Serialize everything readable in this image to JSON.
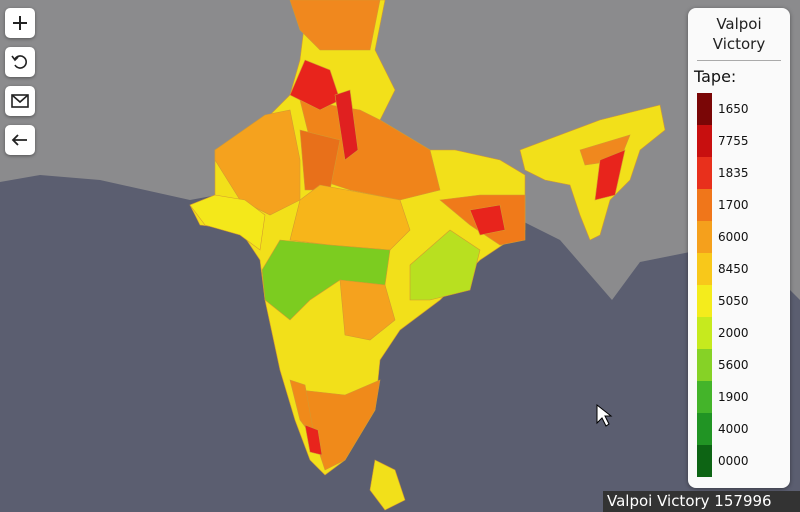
{
  "legend": {
    "title": "Valpoi Victory",
    "subtitle": "Tape:",
    "items": [
      {
        "label": "1650",
        "color": "#7a0606"
      },
      {
        "label": "7755",
        "color": "#c80f0f"
      },
      {
        "label": "1835",
        "color": "#e8301c"
      },
      {
        "label": "1700",
        "color": "#f0761a"
      },
      {
        "label": "6000",
        "color": "#f5a01c"
      },
      {
        "label": "8450",
        "color": "#f8c81a"
      },
      {
        "label": "5050",
        "color": "#f4ec1c"
      },
      {
        "label": "2000",
        "color": "#c6ea1e"
      },
      {
        "label": "5600",
        "color": "#86d226"
      },
      {
        "label": "1900",
        "color": "#44b42a"
      },
      {
        "label": "4000",
        "color": "#219424"
      },
      {
        "label": "0000",
        "color": "#0d6414"
      }
    ]
  },
  "footer": "Valpoi Victory 157996"
}
